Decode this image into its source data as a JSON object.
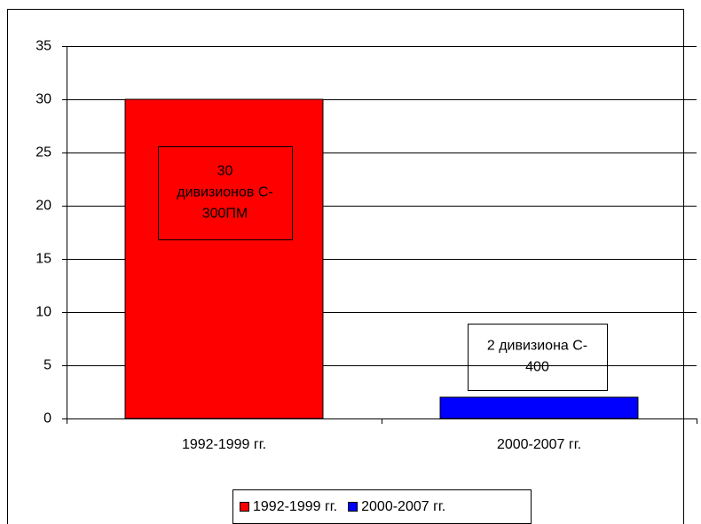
{
  "chart_data": {
    "type": "bar",
    "categories": [
      "1992-1999 гг.",
      "2000-2007 гг."
    ],
    "values": [
      30,
      2
    ],
    "colors": [
      "#ff0000",
      "#0000ff"
    ],
    "ylim": [
      0,
      35
    ],
    "yticks": [
      0,
      5,
      10,
      15,
      20,
      25,
      30,
      35
    ],
    "grid": true,
    "legend": "bottom",
    "annotations": [
      {
        "lines": [
          "30",
          "дивизионов С-",
          "300ПМ"
        ]
      },
      {
        "lines": [
          "2 дивизиона С-",
          "400"
        ]
      }
    ]
  }
}
